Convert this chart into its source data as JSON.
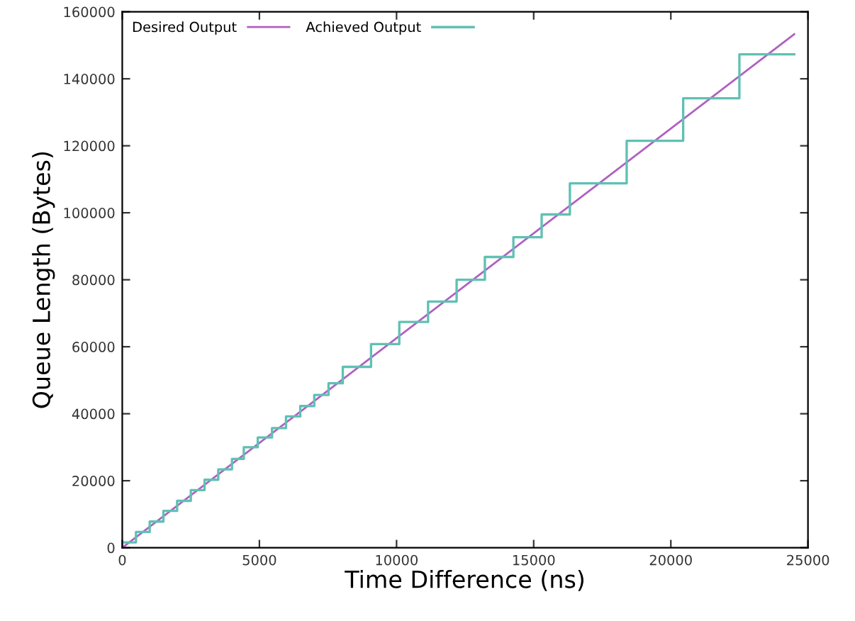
{
  "chart_data": {
    "type": "line",
    "xlabel": "Time Difference (ns)",
    "ylabel": "Queue Length (Bytes)",
    "xlim": [
      0,
      25000
    ],
    "ylim": [
      0,
      160000
    ],
    "xticks": [
      0,
      5000,
      10000,
      15000,
      20000,
      25000
    ],
    "yticks": [
      0,
      20000,
      40000,
      60000,
      80000,
      100000,
      120000,
      140000,
      160000
    ],
    "grid": false,
    "legend": "top left",
    "marker": "none",
    "series": [
      {
        "name": "Desired Output",
        "color": "#b060c0",
        "x": [
          0,
          24500
        ],
        "values": [
          0,
          153300
        ]
      },
      {
        "name": "Achieved Output",
        "type": "step",
        "color": "#60c0b4",
        "x": [
          0,
          500,
          1000,
          1500,
          2000,
          2500,
          3000,
          3500,
          4000,
          4430,
          4940,
          5460,
          5970,
          6490,
          7000,
          7520,
          8040,
          9070,
          10100,
          11150,
          12190,
          13220,
          14260,
          15290,
          16320,
          18390,
          20450,
          22500,
          24500
        ],
        "values": [
          1600,
          4700,
          7800,
          11000,
          14000,
          17200,
          20300,
          23400,
          26500,
          30000,
          32900,
          35700,
          39200,
          42300,
          45600,
          49100,
          54000,
          60800,
          67400,
          73500,
          80000,
          86800,
          92700,
          99500,
          108800,
          121500,
          134200,
          147300,
          147300
        ]
      }
    ]
  }
}
